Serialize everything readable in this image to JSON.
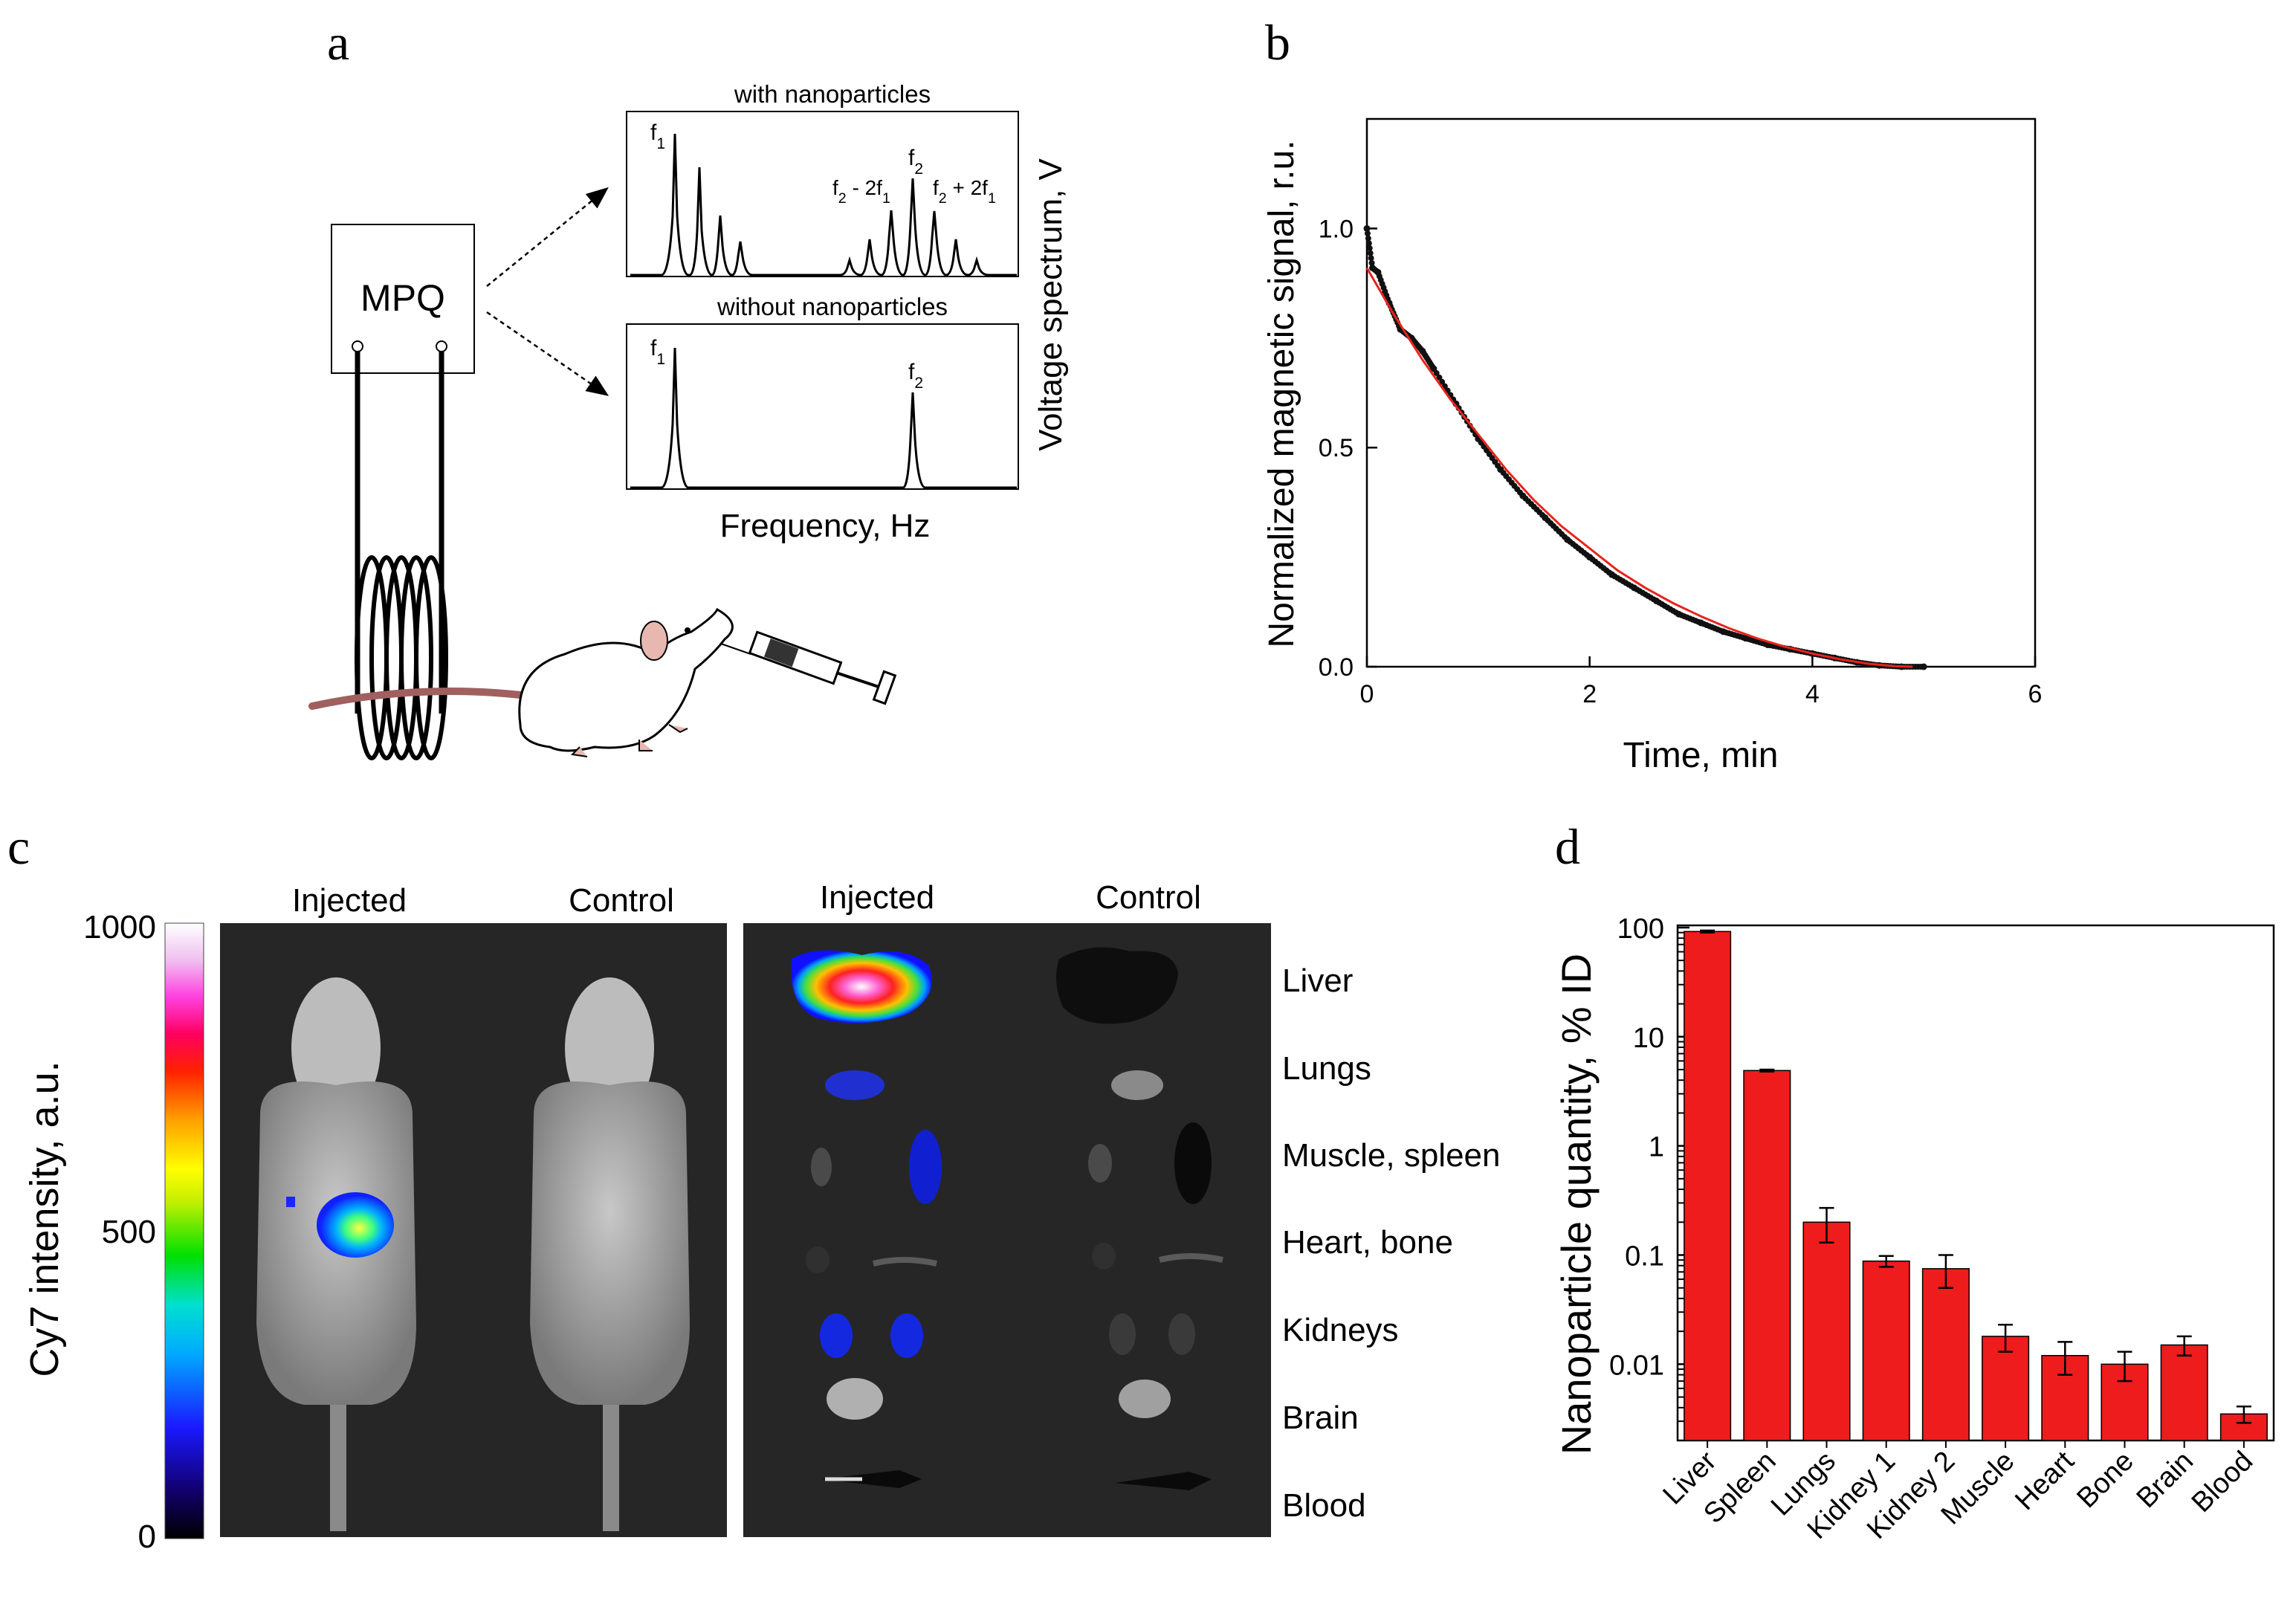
{
  "panel_a": {
    "letter": "a",
    "device": "MPQ",
    "top_spectrum_title": "with nanoparticles",
    "bottom_spectrum_title": "without nanoparticles",
    "x_label": "Frequency, Hz",
    "y_label": "Voltage spectrum, V",
    "f1": "f1",
    "f2": "f2",
    "f2_minus": "f2 - 2f1",
    "f2_plus": "f2 + 2f1"
  },
  "panel_b": {
    "letter": "b",
    "chart_data": {
      "type": "scatter",
      "xlabel": "Time, min",
      "ylabel": "Normalized magnetic signal, r.u.",
      "xlim": [
        0,
        6
      ],
      "ylim": [
        0,
        1.25
      ],
      "xticks": [
        "0",
        "2",
        "4",
        "6"
      ],
      "yticks": [
        "0.0",
        "0.5",
        "1.0"
      ],
      "series": [
        {
          "x": [
            0,
            0.05,
            0.1,
            0.2,
            0.3,
            0.4,
            0.5,
            0.6,
            0.8,
            1.0,
            1.2,
            1.4,
            1.6,
            1.8,
            2.0,
            2.2,
            2.4,
            2.6,
            2.8,
            3.0,
            3.2,
            3.4,
            3.6,
            3.8,
            4.0,
            4.2,
            4.4,
            4.6,
            4.8,
            5.0
          ],
          "values": [
            1.0,
            0.91,
            0.9,
            0.83,
            0.77,
            0.75,
            0.72,
            0.68,
            0.6,
            0.52,
            0.45,
            0.39,
            0.34,
            0.29,
            0.25,
            0.21,
            0.18,
            0.15,
            0.12,
            0.1,
            0.08,
            0.065,
            0.05,
            0.04,
            0.03,
            0.02,
            0.01,
            0.003,
            0.0,
            0.0
          ]
        },
        {
          "type": "line",
          "color": "#e8241c",
          "x": [
            0,
            0.25,
            0.5,
            0.75,
            1.0,
            1.25,
            1.5,
            1.75,
            2.0,
            2.25,
            2.5,
            2.75,
            3.0,
            3.25,
            3.5,
            3.75,
            4.0,
            4.25,
            4.5,
            4.75,
            4.9
          ],
          "values": [
            0.91,
            0.8,
            0.7,
            0.61,
            0.53,
            0.45,
            0.38,
            0.32,
            0.27,
            0.22,
            0.18,
            0.145,
            0.115,
            0.088,
            0.065,
            0.046,
            0.03,
            0.017,
            0.007,
            0.001,
            0.0
          ]
        }
      ]
    }
  },
  "panel_c": {
    "letter": "c",
    "colorbar_label": "Cy7 intensity, a.u.",
    "colorbar_ticks": [
      "1000",
      "500",
      "0"
    ],
    "left_headers": [
      "Injected",
      "Control"
    ],
    "right_headers": [
      "Injected",
      "Control"
    ],
    "organ_labels": [
      "Liver",
      "Lungs",
      "Muscle, spleen",
      "Heart, bone",
      "Kidneys",
      "Brain",
      "Blood"
    ]
  },
  "panel_d": {
    "letter": "d",
    "chart_data": {
      "type": "bar",
      "ylabel": "Nanoparticle quantity, % ID",
      "y_scale": "log",
      "ylim": [
        0.002,
        100
      ],
      "yticks": [
        "100",
        "10",
        "1",
        "0.1",
        "0.01"
      ],
      "bar_color": "#ee1c1c",
      "categories": [
        "Liver",
        "Spleen",
        "Lungs",
        "Kidney 1",
        "Kidney 2",
        "Muscle",
        "Heart",
        "Bone",
        "Brain",
        "Blood"
      ],
      "values": [
        92,
        4.9,
        0.2,
        0.088,
        0.075,
        0.018,
        0.012,
        0.01,
        0.015,
        0.0035
      ],
      "errors": [
        2,
        0.1,
        0.07,
        0.01,
        0.025,
        0.005,
        0.004,
        0.003,
        0.003,
        0.0006
      ]
    }
  }
}
